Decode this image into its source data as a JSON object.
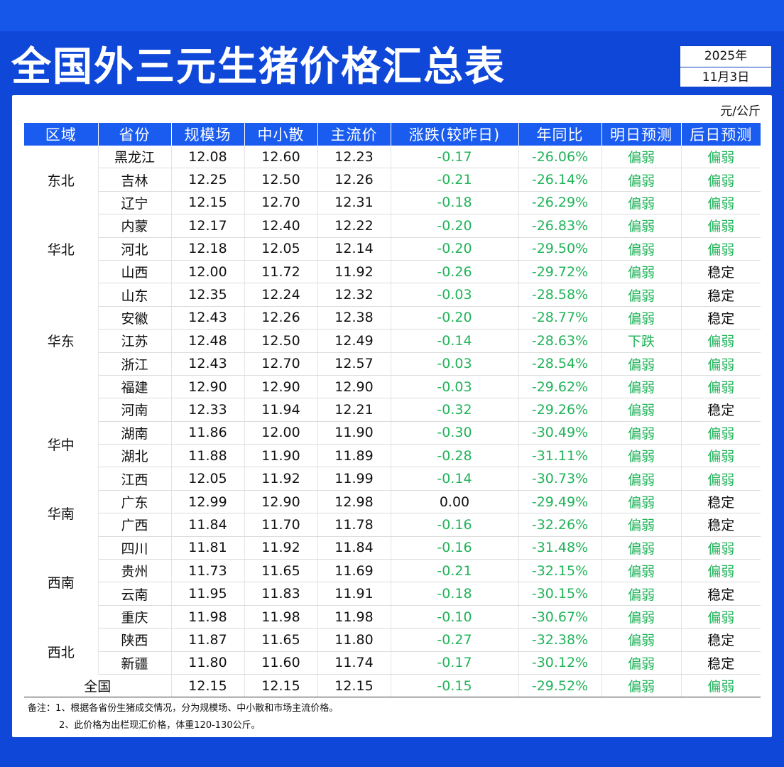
{
  "title": "全国外三元生猪价格汇总表",
  "date": {
    "year": "2025年",
    "day": "11月3日"
  },
  "unit": "元/公斤",
  "columns": [
    "区域",
    "省份",
    "规模场",
    "中小散",
    "主流价",
    "涨跌(较昨日)",
    "年同比",
    "明日预测",
    "后日预测"
  ],
  "rows": [
    [
      "东北",
      "黑龙江",
      "12.08",
      "12.60",
      "12.23",
      "-0.17",
      "-26.06%",
      "偏弱",
      "偏弱"
    ],
    [
      "",
      "吉林",
      "12.25",
      "12.50",
      "12.26",
      "-0.21",
      "-26.14%",
      "偏弱",
      "偏弱"
    ],
    [
      "",
      "辽宁",
      "12.15",
      "12.70",
      "12.31",
      "-0.18",
      "-26.29%",
      "偏弱",
      "偏弱"
    ],
    [
      "华北",
      "内蒙",
      "12.17",
      "12.40",
      "12.22",
      "-0.20",
      "-26.83%",
      "偏弱",
      "偏弱"
    ],
    [
      "",
      "河北",
      "12.18",
      "12.05",
      "12.14",
      "-0.20",
      "-29.50%",
      "偏弱",
      "偏弱"
    ],
    [
      "",
      "山西",
      "12.00",
      "11.72",
      "11.92",
      "-0.26",
      "-29.72%",
      "偏弱",
      "稳定"
    ],
    [
      "华东",
      "山东",
      "12.35",
      "12.24",
      "12.32",
      "-0.03",
      "-28.58%",
      "偏弱",
      "稳定"
    ],
    [
      "",
      "安徽",
      "12.43",
      "12.26",
      "12.38",
      "-0.20",
      "-28.77%",
      "偏弱",
      "稳定"
    ],
    [
      "",
      "江苏",
      "12.48",
      "12.50",
      "12.49",
      "-0.14",
      "-28.63%",
      "下跌",
      "偏弱"
    ],
    [
      "",
      "浙江",
      "12.43",
      "12.70",
      "12.57",
      "-0.03",
      "-28.54%",
      "偏弱",
      "偏弱"
    ],
    [
      "",
      "福建",
      "12.90",
      "12.90",
      "12.90",
      "-0.03",
      "-29.62%",
      "偏弱",
      "偏弱"
    ],
    [
      "华中",
      "河南",
      "12.33",
      "11.94",
      "12.21",
      "-0.32",
      "-29.26%",
      "偏弱",
      "稳定"
    ],
    [
      "",
      "湖南",
      "11.86",
      "12.00",
      "11.90",
      "-0.30",
      "-30.49%",
      "偏弱",
      "偏弱"
    ],
    [
      "",
      "湖北",
      "11.88",
      "11.90",
      "11.89",
      "-0.28",
      "-31.11%",
      "偏弱",
      "偏弱"
    ],
    [
      "",
      "江西",
      "12.05",
      "11.92",
      "11.99",
      "-0.14",
      "-30.73%",
      "偏弱",
      "偏弱"
    ],
    [
      "华南",
      "广东",
      "12.99",
      "12.90",
      "12.98",
      "0.00",
      "-29.49%",
      "偏弱",
      "稳定"
    ],
    [
      "",
      "广西",
      "11.84",
      "11.70",
      "11.78",
      "-0.16",
      "-32.26%",
      "偏弱",
      "稳定"
    ],
    [
      "西南",
      "四川",
      "11.81",
      "11.92",
      "11.84",
      "-0.16",
      "-31.48%",
      "偏弱",
      "偏弱"
    ],
    [
      "",
      "贵州",
      "11.73",
      "11.65",
      "11.69",
      "-0.21",
      "-32.15%",
      "偏弱",
      "偏弱"
    ],
    [
      "",
      "云南",
      "11.95",
      "11.83",
      "11.91",
      "-0.18",
      "-30.15%",
      "偏弱",
      "稳定"
    ],
    [
      "",
      "重庆",
      "11.98",
      "11.98",
      "11.98",
      "-0.10",
      "-30.67%",
      "偏弱",
      "偏弱"
    ],
    [
      "西北",
      "陕西",
      "11.87",
      "11.65",
      "11.80",
      "-0.27",
      "-32.38%",
      "偏弱",
      "稳定"
    ],
    [
      "",
      "新疆",
      "11.80",
      "11.60",
      "11.74",
      "-0.17",
      "-30.12%",
      "偏弱",
      "稳定"
    ]
  ],
  "national": [
    "全国",
    "12.15",
    "12.15",
    "12.15",
    "-0.15",
    "-29.52%",
    "偏弱",
    "偏弱"
  ],
  "notes": [
    "备注：1、根据各省份生猪成交情况，分为规模场、中小散和市场主流价格。",
    "2、此价格为出栏现汇价格，体重120-130公斤。"
  ],
  "colors": {
    "header_blue": "#1a5cf0",
    "background_blue": "#0f47d9",
    "trend_green": "#22b35a"
  }
}
